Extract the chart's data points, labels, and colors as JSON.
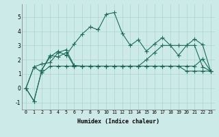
{
  "xlabel": "Humidex (Indice chaleur)",
  "bg_color": "#cceae8",
  "line_color": "#1a6b5a",
  "grid_color": "#aad4d0",
  "x_data": [
    0,
    1,
    2,
    3,
    4,
    5,
    6,
    7,
    8,
    9,
    10,
    11,
    12,
    13,
    14,
    15,
    16,
    17,
    18,
    19,
    20,
    21,
    22,
    23
  ],
  "line1": [
    0.0,
    -0.9,
    1.3,
    2.2,
    2.6,
    2.3,
    3.1,
    3.8,
    4.3,
    4.1,
    5.2,
    5.3,
    3.85,
    3.0,
    3.4,
    2.6,
    3.1,
    3.55,
    3.0,
    3.0,
    3.0,
    3.45,
    3.05,
    1.2
  ],
  "line2": [
    0.0,
    -0.9,
    1.3,
    2.3,
    2.2,
    2.5,
    1.55,
    1.55,
    1.55,
    1.55,
    1.55,
    1.55,
    1.55,
    1.55,
    1.55,
    1.55,
    1.55,
    1.55,
    1.55,
    1.55,
    1.55,
    1.55,
    2.05,
    1.2
  ],
  "line3": [
    0.0,
    1.5,
    1.7,
    1.8,
    2.5,
    2.7,
    1.6,
    1.55,
    1.55,
    1.55,
    1.55,
    1.55,
    1.55,
    1.55,
    1.55,
    2.0,
    2.5,
    3.0,
    3.0,
    2.3,
    3.0,
    3.0,
    1.5,
    1.2
  ],
  "line4": [
    0.0,
    1.5,
    1.1,
    1.55,
    1.55,
    1.55,
    1.55,
    1.55,
    1.55,
    1.55,
    1.55,
    1.55,
    1.55,
    1.55,
    1.55,
    1.55,
    1.55,
    1.55,
    1.55,
    1.55,
    1.2,
    1.2,
    1.2,
    1.2
  ],
  "ylim": [
    -1.5,
    5.9
  ],
  "yticks": [
    -1,
    0,
    1,
    2,
    3,
    4,
    5
  ],
  "xticks": [
    0,
    1,
    2,
    3,
    4,
    5,
    6,
    7,
    8,
    9,
    10,
    11,
    12,
    13,
    14,
    15,
    16,
    17,
    18,
    19,
    20,
    21,
    22,
    23
  ]
}
